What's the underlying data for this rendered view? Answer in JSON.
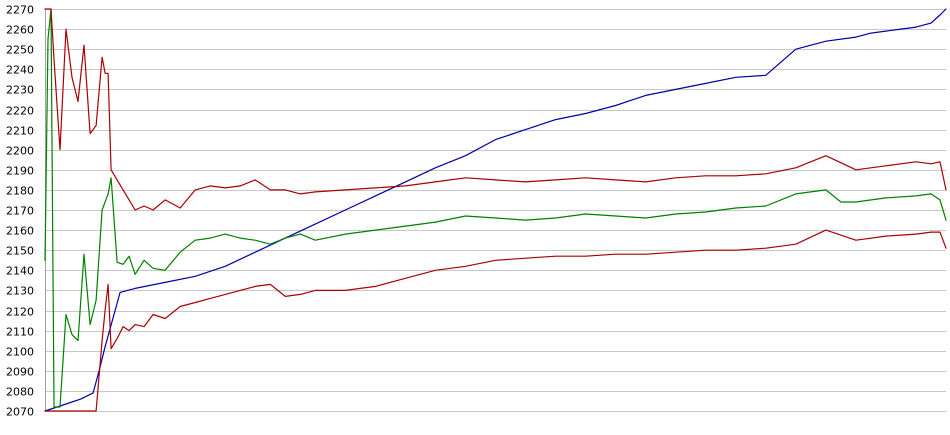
{
  "chart_data": {
    "type": "line",
    "title": "",
    "xlabel": "",
    "ylabel": "",
    "ylim": [
      2070,
      2270
    ],
    "yticks": [
      2070,
      2080,
      2090,
      2100,
      2110,
      2120,
      2130,
      2140,
      2150,
      2160,
      2170,
      2180,
      2190,
      2200,
      2210,
      2220,
      2230,
      2240,
      2250,
      2260,
      2270
    ],
    "xlim": [
      0,
      300
    ],
    "grid": true,
    "legend": "none",
    "series": [
      {
        "color": "#0000aa",
        "x": [
          0,
          8,
          12,
          16,
          18,
          20,
          25,
          30,
          40,
          50,
          60,
          70,
          80,
          90,
          100,
          110,
          120,
          130,
          140,
          150,
          160,
          170,
          180,
          190,
          200,
          210,
          220,
          230,
          240,
          250,
          260,
          270,
          275,
          280,
          285,
          290,
          295,
          298,
          300
        ],
        "values": [
          2070,
          2074,
          2076,
          2079,
          2090,
          2102,
          2129,
          2131,
          2134,
          2137,
          2142,
          2149,
          2156,
          2163,
          2170,
          2177,
          2184,
          2191,
          2197,
          2205,
          2210,
          2215,
          2218,
          2222,
          2227,
          2230,
          2233,
          2236,
          2237,
          2250,
          2254,
          2256,
          2258,
          2259,
          2260,
          2261,
          2263,
          2267,
          2270
        ]
      },
      {
        "color": "#008000",
        "x": [
          0,
          1,
          2,
          3,
          5,
          7,
          9,
          11,
          13,
          15,
          17,
          19,
          21,
          22,
          24,
          26,
          28,
          30,
          33,
          36,
          40,
          45,
          50,
          55,
          60,
          65,
          70,
          75,
          80,
          85,
          90,
          100,
          110,
          120,
          130,
          140,
          150,
          160,
          170,
          180,
          190,
          200,
          210,
          220,
          230,
          240,
          250,
          260,
          265,
          270,
          280,
          290,
          295,
          298,
          300
        ],
        "values": [
          2145,
          2255,
          2270,
          2072,
          2072,
          2118,
          2108,
          2105,
          2148,
          2113,
          2125,
          2170,
          2178,
          2186,
          2144,
          2143,
          2147,
          2138,
          2145,
          2141,
          2140,
          2149,
          2155,
          2156,
          2158,
          2156,
          2155,
          2153,
          2156,
          2158,
          2155,
          2158,
          2160,
          2162,
          2164,
          2167,
          2166,
          2165,
          2166,
          2168,
          2167,
          2166,
          2168,
          2169,
          2171,
          2172,
          2178,
          2180,
          2174,
          2174,
          2176,
          2177,
          2178,
          2175,
          2165
        ]
      },
      {
        "color": "#aa0000",
        "x": [
          0,
          1,
          2,
          3,
          5,
          7,
          9,
          11,
          13,
          15,
          17,
          19,
          20,
          21,
          22,
          24,
          26,
          28,
          30,
          33,
          36,
          40,
          45,
          50,
          55,
          60,
          65,
          70,
          75,
          80,
          85,
          90,
          100,
          110,
          120,
          130,
          140,
          150,
          160,
          170,
          180,
          190,
          200,
          210,
          220,
          230,
          240,
          250,
          260,
          270,
          280,
          290,
          295,
          298,
          300
        ],
        "values": [
          2270,
          2270,
          2270,
          2245,
          2200,
          2260,
          2236,
          2224,
          2252,
          2208,
          2212,
          2246,
          2238,
          2238,
          2190,
          2185,
          2180,
          2175,
          2170,
          2172,
          2170,
          2175,
          2171,
          2180,
          2182,
          2181,
          2182,
          2185,
          2180,
          2180,
          2178,
          2179,
          2180,
          2181,
          2182,
          2184,
          2186,
          2185,
          2184,
          2185,
          2186,
          2185,
          2184,
          2186,
          2187,
          2187,
          2188,
          2191,
          2197,
          2190,
          2192,
          2194,
          2193,
          2194,
          2180
        ]
      },
      {
        "color": "#aa0000",
        "x": [
          0,
          3,
          6,
          10,
          14,
          17,
          19,
          20,
          21,
          22,
          24,
          26,
          28,
          30,
          33,
          36,
          40,
          45,
          50,
          55,
          60,
          65,
          70,
          75,
          80,
          85,
          90,
          100,
          110,
          120,
          130,
          140,
          150,
          160,
          170,
          180,
          190,
          200,
          210,
          220,
          230,
          240,
          250,
          260,
          270,
          280,
          290,
          295,
          298,
          300
        ],
        "values": [
          2070,
          2070,
          2070,
          2070,
          2070,
          2070,
          2105,
          2120,
          2133,
          2101,
          2106,
          2112,
          2110,
          2113,
          2112,
          2118,
          2116,
          2122,
          2124,
          2126,
          2128,
          2130,
          2132,
          2133,
          2127,
          2128,
          2130,
          2130,
          2132,
          2136,
          2140,
          2142,
          2145,
          2146,
          2147,
          2147,
          2148,
          2148,
          2149,
          2150,
          2150,
          2151,
          2153,
          2160,
          2155,
          2157,
          2158,
          2159,
          2159,
          2151
        ]
      }
    ]
  }
}
